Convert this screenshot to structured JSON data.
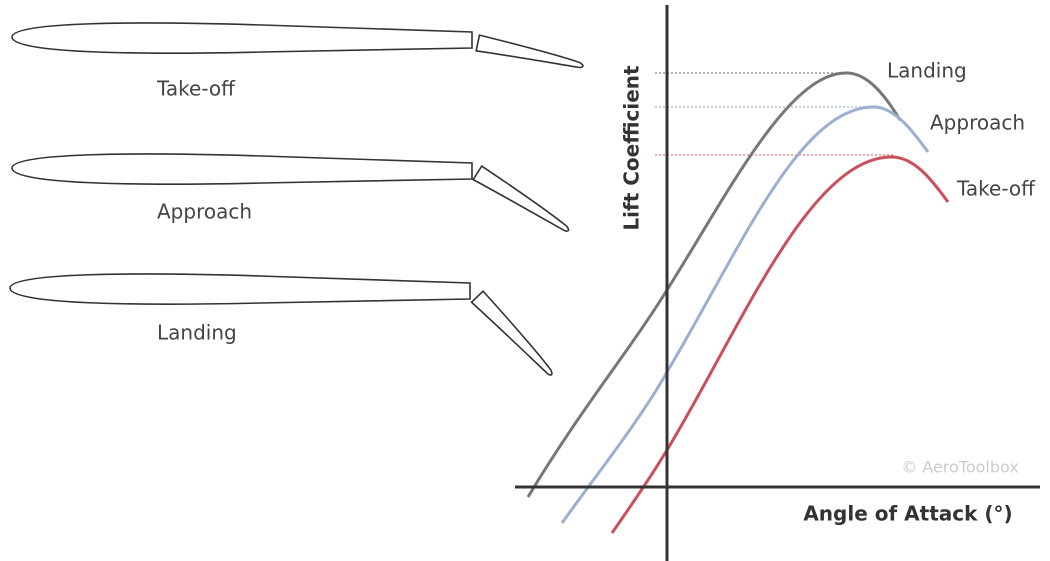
{
  "airfoils": [
    {
      "label": "Take-off"
    },
    {
      "label": "Approach"
    },
    {
      "label": "Landing"
    }
  ],
  "plot": {
    "y_axis_label": "Lift Coefficient",
    "x_axis_label": "Angle of Attack (°)",
    "curves": [
      {
        "label": "Landing"
      },
      {
        "label": "Approach"
      },
      {
        "label": "Take-off"
      }
    ],
    "watermark": "© AeroToolbox"
  }
}
